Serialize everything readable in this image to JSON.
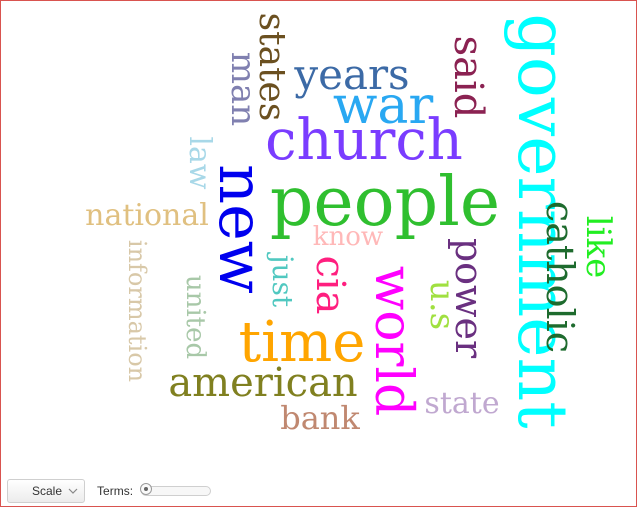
{
  "toolbar": {
    "scale_label": "Scale",
    "terms_label": "Terms:",
    "terms_level": 0
  },
  "words": [
    {
      "text": "government",
      "color": "#00ffff"
    },
    {
      "text": "people",
      "color": "#2fbf2f"
    },
    {
      "text": "new",
      "color": "#0000ee"
    },
    {
      "text": "church",
      "color": "#7a3cff"
    },
    {
      "text": "war",
      "color": "#29a8f2"
    },
    {
      "text": "world",
      "color": "#ff00ff"
    },
    {
      "text": "time",
      "color": "#ffa500"
    },
    {
      "text": "years",
      "color": "#3c6aa6"
    },
    {
      "text": "catholic",
      "color": "#1e6b2e"
    },
    {
      "text": "american",
      "color": "#808020"
    },
    {
      "text": "said",
      "color": "#8b2252"
    },
    {
      "text": "states",
      "color": "#6b5020"
    },
    {
      "text": "man",
      "color": "#8080b0"
    },
    {
      "text": "power",
      "color": "#6a3080"
    },
    {
      "text": "cia",
      "color": "#ff1f7f"
    },
    {
      "text": "like",
      "color": "#22ee22"
    },
    {
      "text": "national",
      "color": "#e0c080"
    },
    {
      "text": "u.s",
      "color": "#a0e040"
    },
    {
      "text": "law",
      "color": "#a8d8e8"
    },
    {
      "text": "state",
      "color": "#c0a8d0"
    },
    {
      "text": "bank",
      "color": "#c08870"
    },
    {
      "text": "know",
      "color": "#ffb8b8"
    },
    {
      "text": "just",
      "color": "#50c8c0"
    },
    {
      "text": "united",
      "color": "#a8c8a8"
    },
    {
      "text": "information",
      "color": "#d8c8a8"
    }
  ]
}
